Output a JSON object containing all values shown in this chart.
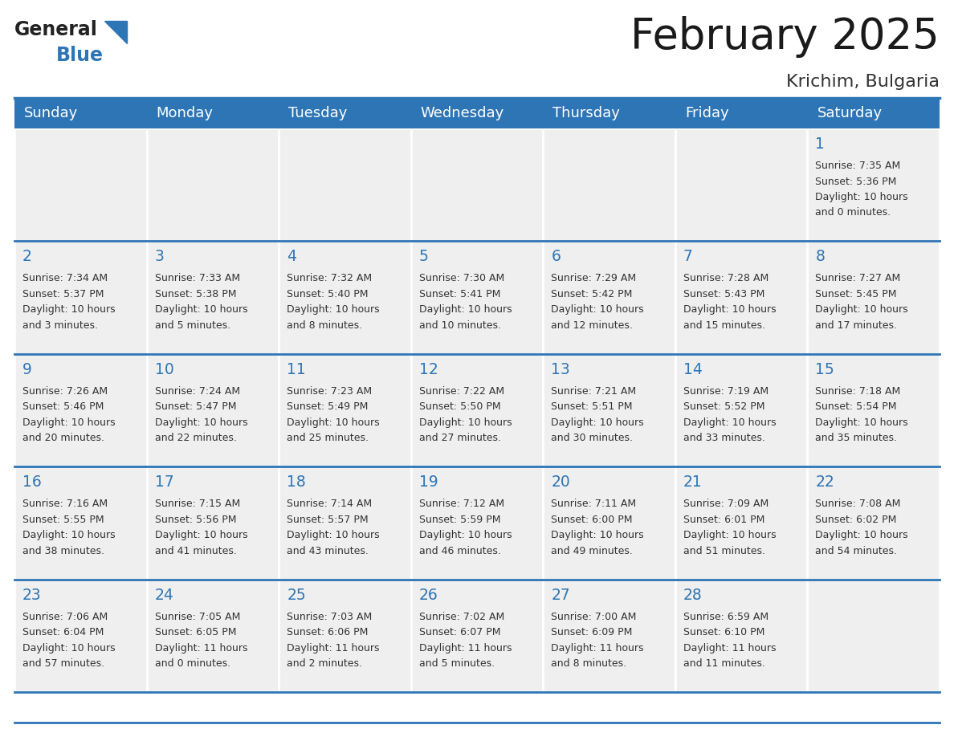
{
  "title": "February 2025",
  "subtitle": "Krichim, Bulgaria",
  "header_bg_color": "#2E75B6",
  "header_text_color": "#FFFFFF",
  "cell_bg_color": "#EFEFEF",
  "cell_text_color": "#333333",
  "day_num_color": "#2E75B6",
  "border_color": "#2E75B6",
  "separator_color": "#2E75B6",
  "logo_text_color": "#222222",
  "logo_blue_color": "#2E75B6",
  "day_headers": [
    "Sunday",
    "Monday",
    "Tuesday",
    "Wednesday",
    "Thursday",
    "Friday",
    "Saturday"
  ],
  "days": [
    {
      "day": 1,
      "col": 6,
      "row": 0,
      "sunrise": "7:35 AM",
      "sunset": "5:36 PM",
      "daylight_hours": 10,
      "daylight_minutes": 0
    },
    {
      "day": 2,
      "col": 0,
      "row": 1,
      "sunrise": "7:34 AM",
      "sunset": "5:37 PM",
      "daylight_hours": 10,
      "daylight_minutes": 3
    },
    {
      "day": 3,
      "col": 1,
      "row": 1,
      "sunrise": "7:33 AM",
      "sunset": "5:38 PM",
      "daylight_hours": 10,
      "daylight_minutes": 5
    },
    {
      "day": 4,
      "col": 2,
      "row": 1,
      "sunrise": "7:32 AM",
      "sunset": "5:40 PM",
      "daylight_hours": 10,
      "daylight_minutes": 8
    },
    {
      "day": 5,
      "col": 3,
      "row": 1,
      "sunrise": "7:30 AM",
      "sunset": "5:41 PM",
      "daylight_hours": 10,
      "daylight_minutes": 10
    },
    {
      "day": 6,
      "col": 4,
      "row": 1,
      "sunrise": "7:29 AM",
      "sunset": "5:42 PM",
      "daylight_hours": 10,
      "daylight_minutes": 12
    },
    {
      "day": 7,
      "col": 5,
      "row": 1,
      "sunrise": "7:28 AM",
      "sunset": "5:43 PM",
      "daylight_hours": 10,
      "daylight_minutes": 15
    },
    {
      "day": 8,
      "col": 6,
      "row": 1,
      "sunrise": "7:27 AM",
      "sunset": "5:45 PM",
      "daylight_hours": 10,
      "daylight_minutes": 17
    },
    {
      "day": 9,
      "col": 0,
      "row": 2,
      "sunrise": "7:26 AM",
      "sunset": "5:46 PM",
      "daylight_hours": 10,
      "daylight_minutes": 20
    },
    {
      "day": 10,
      "col": 1,
      "row": 2,
      "sunrise": "7:24 AM",
      "sunset": "5:47 PM",
      "daylight_hours": 10,
      "daylight_minutes": 22
    },
    {
      "day": 11,
      "col": 2,
      "row": 2,
      "sunrise": "7:23 AM",
      "sunset": "5:49 PM",
      "daylight_hours": 10,
      "daylight_minutes": 25
    },
    {
      "day": 12,
      "col": 3,
      "row": 2,
      "sunrise": "7:22 AM",
      "sunset": "5:50 PM",
      "daylight_hours": 10,
      "daylight_minutes": 27
    },
    {
      "day": 13,
      "col": 4,
      "row": 2,
      "sunrise": "7:21 AM",
      "sunset": "5:51 PM",
      "daylight_hours": 10,
      "daylight_minutes": 30
    },
    {
      "day": 14,
      "col": 5,
      "row": 2,
      "sunrise": "7:19 AM",
      "sunset": "5:52 PM",
      "daylight_hours": 10,
      "daylight_minutes": 33
    },
    {
      "day": 15,
      "col": 6,
      "row": 2,
      "sunrise": "7:18 AM",
      "sunset": "5:54 PM",
      "daylight_hours": 10,
      "daylight_minutes": 35
    },
    {
      "day": 16,
      "col": 0,
      "row": 3,
      "sunrise": "7:16 AM",
      "sunset": "5:55 PM",
      "daylight_hours": 10,
      "daylight_minutes": 38
    },
    {
      "day": 17,
      "col": 1,
      "row": 3,
      "sunrise": "7:15 AM",
      "sunset": "5:56 PM",
      "daylight_hours": 10,
      "daylight_minutes": 41
    },
    {
      "day": 18,
      "col": 2,
      "row": 3,
      "sunrise": "7:14 AM",
      "sunset": "5:57 PM",
      "daylight_hours": 10,
      "daylight_minutes": 43
    },
    {
      "day": 19,
      "col": 3,
      "row": 3,
      "sunrise": "7:12 AM",
      "sunset": "5:59 PM",
      "daylight_hours": 10,
      "daylight_minutes": 46
    },
    {
      "day": 20,
      "col": 4,
      "row": 3,
      "sunrise": "7:11 AM",
      "sunset": "6:00 PM",
      "daylight_hours": 10,
      "daylight_minutes": 49
    },
    {
      "day": 21,
      "col": 5,
      "row": 3,
      "sunrise": "7:09 AM",
      "sunset": "6:01 PM",
      "daylight_hours": 10,
      "daylight_minutes": 51
    },
    {
      "day": 22,
      "col": 6,
      "row": 3,
      "sunrise": "7:08 AM",
      "sunset": "6:02 PM",
      "daylight_hours": 10,
      "daylight_minutes": 54
    },
    {
      "day": 23,
      "col": 0,
      "row": 4,
      "sunrise": "7:06 AM",
      "sunset": "6:04 PM",
      "daylight_hours": 10,
      "daylight_minutes": 57
    },
    {
      "day": 24,
      "col": 1,
      "row": 4,
      "sunrise": "7:05 AM",
      "sunset": "6:05 PM",
      "daylight_hours": 11,
      "daylight_minutes": 0
    },
    {
      "day": 25,
      "col": 2,
      "row": 4,
      "sunrise": "7:03 AM",
      "sunset": "6:06 PM",
      "daylight_hours": 11,
      "daylight_minutes": 2
    },
    {
      "day": 26,
      "col": 3,
      "row": 4,
      "sunrise": "7:02 AM",
      "sunset": "6:07 PM",
      "daylight_hours": 11,
      "daylight_minutes": 5
    },
    {
      "day": 27,
      "col": 4,
      "row": 4,
      "sunrise": "7:00 AM",
      "sunset": "6:09 PM",
      "daylight_hours": 11,
      "daylight_minutes": 8
    },
    {
      "day": 28,
      "col": 5,
      "row": 4,
      "sunrise": "6:59 AM",
      "sunset": "6:10 PM",
      "daylight_hours": 11,
      "daylight_minutes": 11
    }
  ]
}
